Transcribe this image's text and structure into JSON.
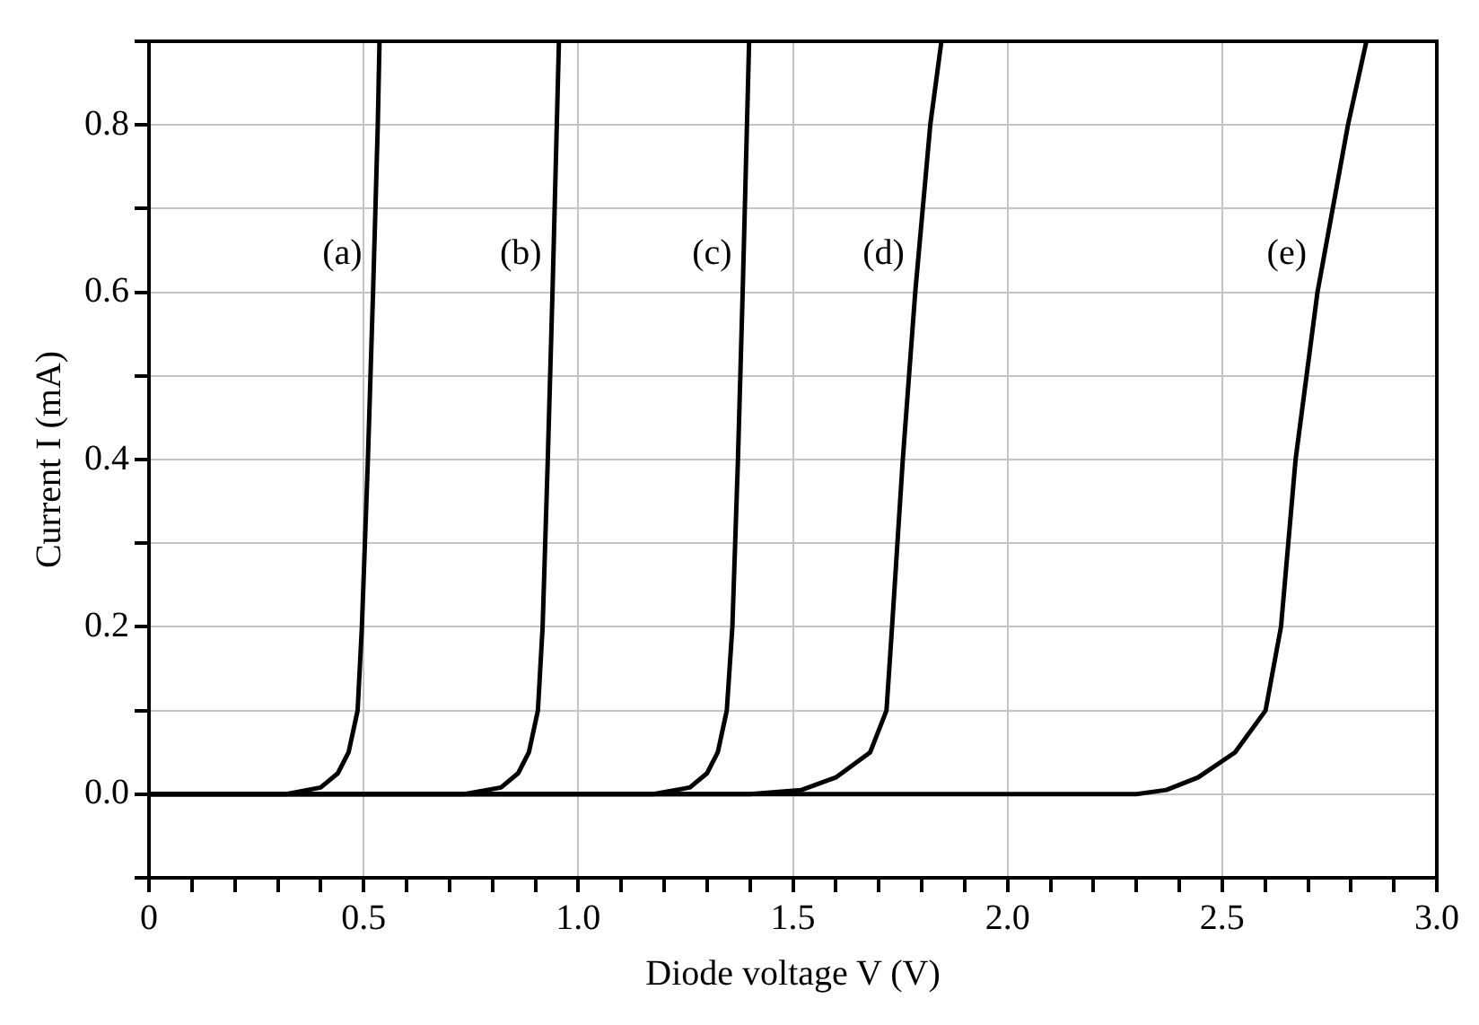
{
  "chart_data": {
    "type": "line",
    "xlabel": "Diode voltage V (V)",
    "ylabel": "Current I (mA)",
    "xlim": [
      0,
      3.0
    ],
    "ylim": [
      -0.1,
      0.9
    ],
    "xticks": [
      {
        "value": 0,
        "label": "0"
      },
      {
        "value": 0.1,
        "label": null
      },
      {
        "value": 0.2,
        "label": null
      },
      {
        "value": 0.3,
        "label": null
      },
      {
        "value": 0.4,
        "label": null
      },
      {
        "value": 0.5,
        "label": "0.5"
      },
      {
        "value": 0.6,
        "label": null
      },
      {
        "value": 0.7,
        "label": null
      },
      {
        "value": 0.8,
        "label": null
      },
      {
        "value": 0.9,
        "label": null
      },
      {
        "value": 1.0,
        "label": "1.0"
      },
      {
        "value": 1.1,
        "label": null
      },
      {
        "value": 1.2,
        "label": null
      },
      {
        "value": 1.3,
        "label": null
      },
      {
        "value": 1.4,
        "label": null
      },
      {
        "value": 1.5,
        "label": "1.5"
      },
      {
        "value": 1.6,
        "label": null
      },
      {
        "value": 1.7,
        "label": null
      },
      {
        "value": 1.8,
        "label": null
      },
      {
        "value": 1.9,
        "label": null
      },
      {
        "value": 2.0,
        "label": "2.0"
      },
      {
        "value": 2.1,
        "label": null
      },
      {
        "value": 2.2,
        "label": null
      },
      {
        "value": 2.3,
        "label": null
      },
      {
        "value": 2.4,
        "label": null
      },
      {
        "value": 2.5,
        "label": "2.5"
      },
      {
        "value": 2.6,
        "label": null
      },
      {
        "value": 2.7,
        "label": null
      },
      {
        "value": 2.8,
        "label": null
      },
      {
        "value": 2.9,
        "label": null
      },
      {
        "value": 3.0,
        "label": "3.0"
      }
    ],
    "yticks": [
      {
        "value": -0.1,
        "label": null
      },
      {
        "value": 0,
        "label": "0.0"
      },
      {
        "value": 0.1,
        "label": null
      },
      {
        "value": 0.2,
        "label": "0.2"
      },
      {
        "value": 0.3,
        "label": null
      },
      {
        "value": 0.4,
        "label": "0.4"
      },
      {
        "value": 0.5,
        "label": null
      },
      {
        "value": 0.6,
        "label": "0.6"
      },
      {
        "value": 0.7,
        "label": null
      },
      {
        "value": 0.8,
        "label": "0.8"
      },
      {
        "value": 0.9,
        "label": null
      }
    ],
    "grid": true,
    "marker": "none",
    "line_style": "solid",
    "series": [
      {
        "name": "(a)",
        "color": "#000000",
        "x": [
          0,
          0.32,
          0.4,
          0.44,
          0.465,
          0.486,
          0.496,
          0.51,
          0.522,
          0.533,
          0.537
        ],
        "values": [
          0,
          0,
          0.008,
          0.025,
          0.05,
          0.1,
          0.2,
          0.4,
          0.6,
          0.8,
          0.9
        ]
      },
      {
        "name": "(b)",
        "color": "#000000",
        "x": [
          0,
          0.735,
          0.82,
          0.86,
          0.885,
          0.906,
          0.917,
          0.929,
          0.94,
          0.95,
          0.955
        ],
        "values": [
          0,
          0,
          0.008,
          0.025,
          0.05,
          0.1,
          0.2,
          0.4,
          0.6,
          0.8,
          0.9
        ]
      },
      {
        "name": "(c)",
        "color": "#000000",
        "x": [
          0,
          1.175,
          1.26,
          1.3,
          1.325,
          1.346,
          1.359,
          1.372,
          1.383,
          1.393,
          1.398
        ],
        "values": [
          0,
          0,
          0.008,
          0.025,
          0.05,
          0.1,
          0.2,
          0.4,
          0.6,
          0.8,
          0.9
        ]
      },
      {
        "name": "(d)",
        "color": "#000000",
        "x": [
          0,
          1.4,
          1.52,
          1.6,
          1.68,
          1.718,
          1.731,
          1.756,
          1.785,
          1.82,
          1.846
        ],
        "values": [
          0,
          0,
          0.005,
          0.02,
          0.05,
          0.1,
          0.2,
          0.4,
          0.6,
          0.8,
          0.9
        ]
      },
      {
        "name": "(e)",
        "color": "#000000",
        "x": [
          0,
          2.3,
          2.37,
          2.444,
          2.53,
          2.601,
          2.637,
          2.671,
          2.722,
          2.793,
          2.836
        ],
        "values": [
          0,
          0,
          0.005,
          0.02,
          0.05,
          0.1,
          0.2,
          0.4,
          0.6,
          0.8,
          0.9
        ]
      }
    ]
  }
}
